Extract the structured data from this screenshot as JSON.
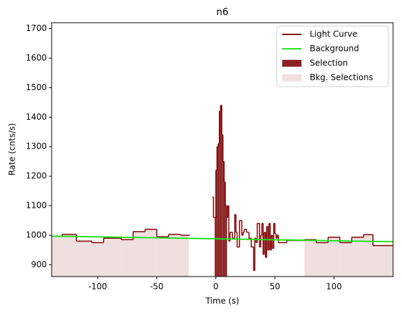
{
  "chart_data": {
    "type": "step",
    "title": "n6",
    "x_label": "Time (s)",
    "y_label": "Rate (cnts/s)",
    "xlim": [
      -139,
      150
    ],
    "ylim": [
      860,
      1720
    ],
    "xticks": [
      -100,
      -50,
      0,
      50,
      100
    ],
    "yticks": [
      900,
      1000,
      1100,
      1200,
      1300,
      1400,
      1500,
      1600,
      1700
    ],
    "legend": "upper right",
    "series": [
      {
        "name": "Light Curve",
        "color": "#800000",
        "x": [
          -139,
          -130,
          -118,
          -105,
          -95,
          -80,
          -70,
          -60,
          -50,
          -40,
          -30,
          -22,
          -3,
          -2,
          0,
          1,
          2,
          3,
          4,
          5,
          6,
          7,
          8,
          9,
          10,
          11,
          12,
          14,
          16,
          17,
          18,
          20,
          22,
          23,
          24,
          26,
          28,
          30,
          32,
          33,
          34,
          35,
          37,
          38,
          39,
          40,
          41,
          42,
          43,
          44,
          45,
          46,
          47,
          48,
          49,
          50,
          51,
          52,
          53,
          60,
          75,
          85,
          95,
          105,
          115,
          125,
          133,
          150
        ],
        "values": [
          997,
          1003,
          980,
          975,
          990,
          985,
          1012,
          1020,
          995,
          1003,
          1000,
          null,
          1130,
          1060,
          1220,
          1300,
          1310,
          1420,
          1440,
          1340,
          1250,
          1180,
          1100,
          1060,
          1100,
          980,
          1010,
          990,
          1070,
          1010,
          960,
          1050,
          1000,
          1010,
          1020,
          1010,
          990,
          960,
          880,
          990,
          975,
          1040,
          960,
          1000,
          1040,
          935,
          1010,
          925,
          1030,
          950,
          1040,
          950,
          1000,
          955,
          1040,
          1005,
          990,
          1000,
          975,
          982,
          985,
          975,
          993,
          975,
          993,
          1002,
          965,
          965
        ]
      },
      {
        "name": "Background",
        "color": "#1ee11e",
        "x": [
          -139,
          150
        ],
        "values": [
          997,
          978
        ]
      }
    ],
    "selections": [
      {
        "name": "Selection",
        "color": "#8b2323",
        "ranges": [
          [
            -1,
            9.5
          ]
        ]
      },
      {
        "name": "Bkg. Selections",
        "color": "#efdfdf",
        "ranges": [
          [
            -139,
            -23
          ],
          [
            75,
            150
          ]
        ]
      }
    ]
  }
}
